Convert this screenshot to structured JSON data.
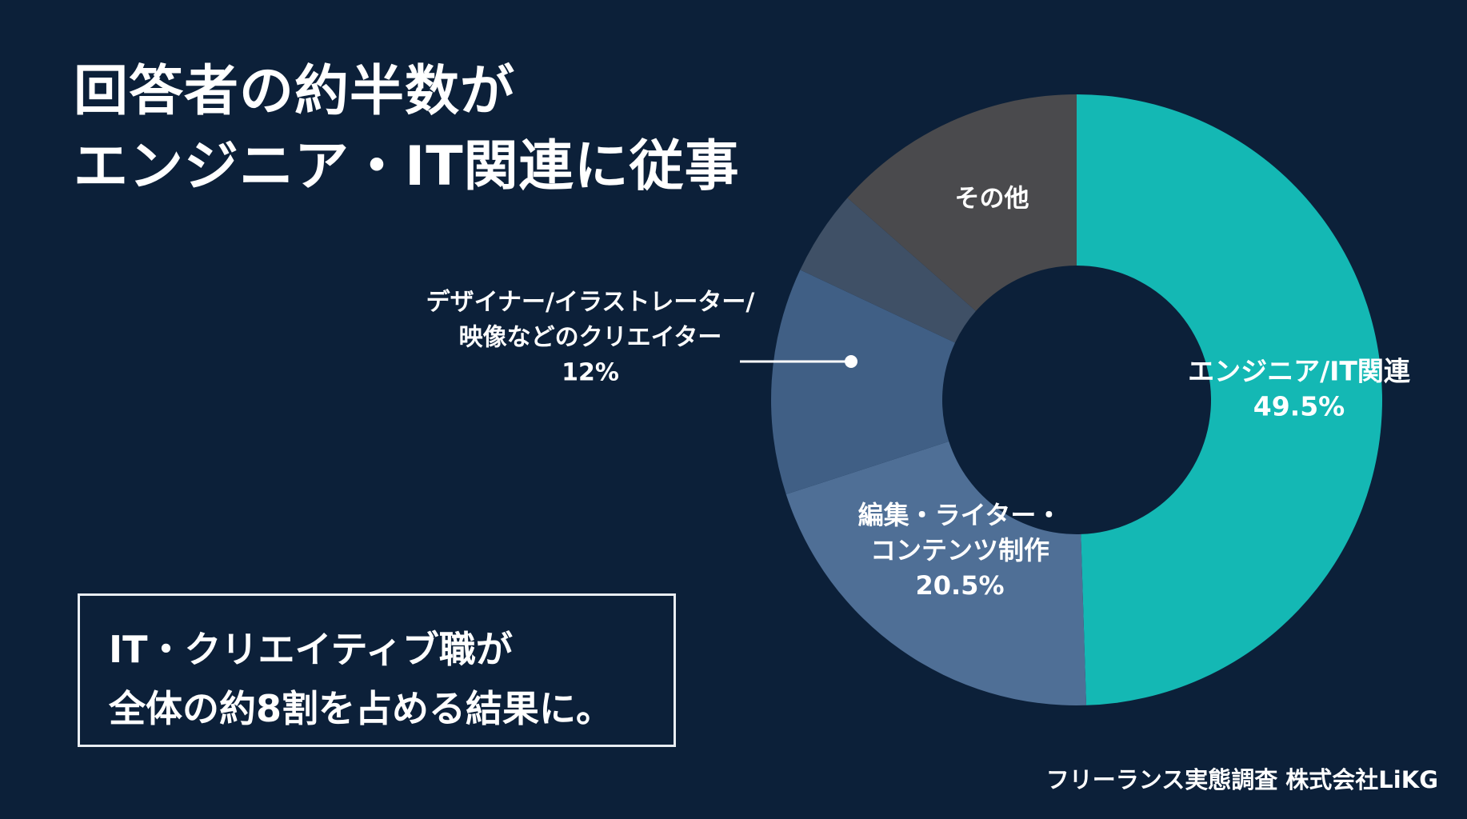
{
  "headline": {
    "line1": "回答者の約半数が",
    "line2": "エンジニア・IT関連に従事"
  },
  "callout": {
    "line1": "IT・クリエイティブ職が",
    "line2": "全体の約8割を占める結果に。"
  },
  "source": "フリーランス実態調査  株式会社LiKG",
  "chart_data": {
    "type": "pie",
    "donut": true,
    "start": "12 o'clock",
    "direction": "clockwise",
    "slices": [
      {
        "label_lines": [
          "エンジニア/IT関連"
        ],
        "value": 49.5,
        "value_label": "49.5%",
        "color": "#14b8b4"
      },
      {
        "label_lines": [
          "編集・ライター・",
          "コンテンツ制作"
        ],
        "value": 20.5,
        "value_label": "20.5%",
        "color": "#4f6f96"
      },
      {
        "label_lines": [
          "デザイナー/イラストレーター/",
          "映像などのクリエイター"
        ],
        "value": 12,
        "value_label": "12%",
        "color": "#405f85"
      },
      {
        "label_lines": [],
        "value": 4.5,
        "value_label": "",
        "color": "#3f5066"
      },
      {
        "label_lines": [
          "その他"
        ],
        "value": 13.5,
        "value_label": "",
        "color": "#4a4a4d"
      }
    ]
  }
}
